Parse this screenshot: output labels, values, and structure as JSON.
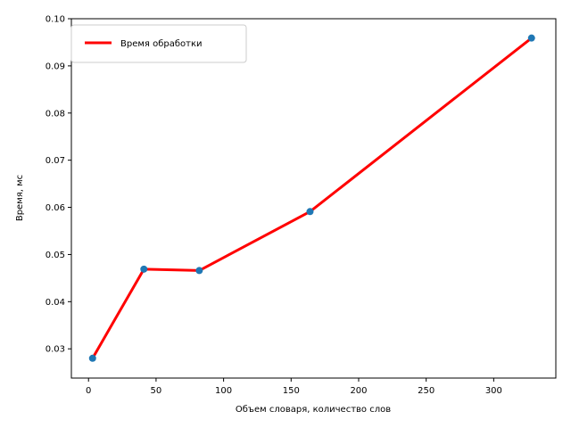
{
  "chart_data": {
    "type": "line",
    "title": "",
    "xlabel": "Объем словаря, количество слов",
    "ylabel": "Время, мс",
    "xlim": [
      -12.7,
      346.0
    ],
    "ylim": [
      0.0238,
      0.1
    ],
    "xticks": [
      0,
      50,
      100,
      150,
      200,
      250,
      300
    ],
    "yticks": [
      0.03,
      0.04,
      0.05,
      0.06,
      0.07,
      0.08,
      0.09,
      0.1
    ],
    "xtick_labels": [
      "0",
      "50",
      "100",
      "150",
      "200",
      "250",
      "300"
    ],
    "ytick_labels": [
      "0.03",
      "0.04",
      "0.05",
      "0.06",
      "0.07",
      "0.08",
      "0.09",
      "0.10"
    ],
    "grid": false,
    "legend_position": "top-left",
    "series": [
      {
        "name": "Время обработки",
        "color": "#ff0000",
        "marker_color": "#1f77b4",
        "x": [
          3,
          41,
          82,
          164,
          328
        ],
        "y": [
          0.028,
          0.0469,
          0.0466,
          0.0591,
          0.0959
        ]
      }
    ]
  }
}
